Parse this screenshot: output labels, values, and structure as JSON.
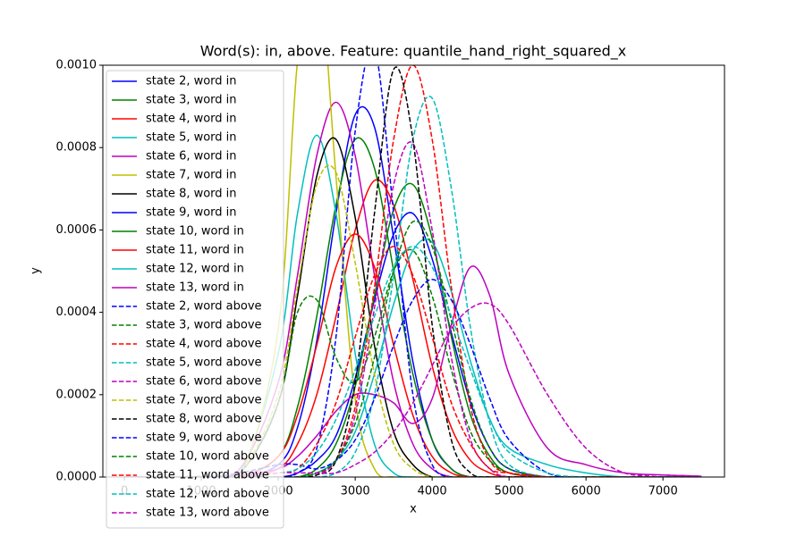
{
  "chart_data": {
    "type": "line",
    "title": "Word(s): in, above. Feature: quantile_hand_right_squared_x",
    "x_label": "x",
    "y_label": "y",
    "x": [
      0,
      500,
      1000,
      1500,
      2000,
      2250,
      2500,
      2750,
      3000,
      3250,
      3500,
      3750,
      4000,
      4250,
      4500,
      4750,
      5000,
      5500,
      6000,
      6500,
      7000,
      7500
    ],
    "xlim": [
      -280,
      7800
    ],
    "xticks": [
      0,
      1000,
      2000,
      3000,
      4000,
      5000,
      6000,
      7000
    ],
    "ylim": [
      0,
      0.001
    ],
    "yticks": [
      {
        "value": 0,
        "label": "0.0000"
      },
      {
        "value": 0.0002,
        "label": "0.0002"
      },
      {
        "value": 0.0004,
        "label": "0.0004"
      },
      {
        "value": 0.0006,
        "label": "0.0006"
      },
      {
        "value": 0.0008,
        "label": "0.0008"
      },
      {
        "value": 0.001,
        "label": "0.0010"
      }
    ],
    "legend": "upper left",
    "series": [
      {
        "name": "state 2, word in",
        "color": "#0000ff",
        "linestyle": "solid",
        "values": [
          0,
          0,
          0,
          0,
          3e-05,
          0.00012,
          0.00033,
          0.00064,
          0.00088,
          0.00085,
          0.00058,
          0.00028,
          9e-05,
          2e-05,
          0,
          0,
          0,
          0,
          0,
          0,
          0,
          0
        ]
      },
      {
        "name": "state 3, word in",
        "color": "#008000",
        "linestyle": "solid",
        "values": [
          0,
          0,
          0,
          0,
          5e-05,
          0.00017,
          0.00039,
          0.00066,
          0.00082,
          0.00075,
          0.0005,
          0.00025,
          9e-05,
          2e-05,
          0,
          0,
          0,
          0,
          0,
          0,
          0,
          0
        ]
      },
      {
        "name": "state 4, word in",
        "color": "#ff0000",
        "linestyle": "solid",
        "values": [
          0,
          0,
          0,
          0,
          2e-05,
          8e-05,
          0.0002,
          0.00039,
          0.0006,
          0.00072,
          0.00066,
          0.00048,
          0.00027,
          0.00012,
          4e-05,
          1e-05,
          0,
          0,
          0,
          0,
          0,
          0
        ]
      },
      {
        "name": "state 5, word in",
        "color": "#00bfbf",
        "linestyle": "solid",
        "values": [
          0,
          0,
          0,
          1e-05,
          0.0003,
          0.00064,
          0.00083,
          0.00064,
          0.0003,
          8e-05,
          1e-05,
          0,
          0,
          0,
          0,
          0,
          0,
          0,
          0,
          0,
          0,
          0
        ]
      },
      {
        "name": "state 6, word in",
        "color": "#bf00bf",
        "linestyle": "solid",
        "values": [
          0,
          0,
          0,
          2e-05,
          0.00023,
          0.00049,
          0.00078,
          0.00091,
          0.00078,
          0.00049,
          0.00023,
          8e-05,
          2e-05,
          0,
          0,
          0,
          0,
          0,
          0,
          0,
          0,
          0
        ]
      },
      {
        "name": "state 7, word in",
        "color": "#bfbf00",
        "linestyle": "solid",
        "values": [
          0,
          0,
          0,
          0,
          0.00036,
          0.00101,
          0.00128,
          0.00073,
          0.00019,
          2e-05,
          0,
          0,
          0,
          0,
          0,
          0,
          0,
          0,
          0,
          0,
          0,
          0
        ]
      },
      {
        "name": "state 8, word in",
        "color": "#000000",
        "linestyle": "solid",
        "values": [
          0,
          0,
          0,
          1e-05,
          0.00018,
          0.00044,
          0.00073,
          0.00082,
          0.00063,
          0.00032,
          0.00011,
          3e-05,
          0,
          0,
          0,
          0,
          0,
          0,
          0,
          0,
          0,
          0
        ]
      },
      {
        "name": "state 9, word in",
        "color": "#0000ff",
        "linestyle": "solid",
        "values": [
          0,
          0,
          0,
          0,
          0,
          1e-05,
          4e-05,
          0.0001,
          0.00024,
          0.00043,
          0.00059,
          0.00064,
          0.00053,
          0.00035,
          0.00018,
          7e-05,
          2e-05,
          0,
          0,
          0,
          0,
          0
        ]
      },
      {
        "name": "state 10, word in",
        "color": "#008000",
        "linestyle": "solid",
        "values": [
          0,
          0,
          0,
          0,
          0,
          0,
          2e-05,
          8e-05,
          0.00022,
          0.00044,
          0.00065,
          0.00071,
          0.00058,
          0.00034,
          0.00015,
          5e-05,
          1e-05,
          0,
          0,
          0,
          0,
          0
        ]
      },
      {
        "name": "state 11, word in",
        "color": "#ff0000",
        "linestyle": "solid",
        "values": [
          0,
          0,
          0,
          0,
          5e-05,
          0.00015,
          0.00032,
          0.00051,
          0.00059,
          0.00051,
          0.00032,
          0.00015,
          5e-05,
          1e-05,
          0,
          0,
          0,
          0,
          0,
          0,
          0,
          0
        ]
      },
      {
        "name": "state 12, word in",
        "color": "#00bfbf",
        "linestyle": "solid",
        "values": [
          0,
          0,
          0,
          0,
          0,
          0,
          1e-05,
          4e-05,
          0.00011,
          0.00025,
          0.00042,
          0.00055,
          0.00057,
          0.00045,
          0.00028,
          0.00014,
          7e-05,
          3e-05,
          1e-05,
          0,
          0,
          0
        ]
      },
      {
        "name": "state 13, word in",
        "color": "#bf00bf",
        "linestyle": "solid",
        "values": [
          0,
          0,
          0,
          5e-06,
          2e-05,
          5e-05,
          0.0001,
          0.00016,
          0.0002,
          0.0002,
          0.00018,
          0.00013,
          0.00019,
          0.00037,
          0.00051,
          0.00044,
          0.00025,
          7e-05,
          3e-05,
          1e-05,
          5e-06,
          2e-06
        ]
      },
      {
        "name": "state 2, word above",
        "color": "#0000ff",
        "linestyle": "dashed",
        "values": [
          0,
          0,
          0,
          0,
          0,
          1e-05,
          7e-05,
          0.00034,
          0.00084,
          0.00104,
          0.00064,
          0.0002,
          3e-05,
          0,
          0,
          0,
          0,
          0,
          0,
          0,
          0,
          0
        ]
      },
      {
        "name": "state 3, word above",
        "color": "#008000",
        "linestyle": "dashed",
        "values": [
          0,
          0,
          2e-06,
          1e-05,
          0.00018,
          0.0004,
          0.00043,
          0.00029,
          0.00023,
          0.00034,
          0.0005,
          0.00055,
          0.00044,
          0.00026,
          0.00011,
          4e-05,
          1e-05,
          0,
          0,
          0,
          0,
          0
        ]
      },
      {
        "name": "state 4, word above",
        "color": "#ff0000",
        "linestyle": "dashed",
        "values": [
          0,
          0,
          0,
          0,
          0,
          0,
          1e-05,
          4e-05,
          0.00017,
          0.00046,
          0.00082,
          0.001,
          0.00082,
          0.00046,
          0.00017,
          4e-05,
          1e-05,
          0,
          0,
          0,
          0,
          0
        ]
      },
      {
        "name": "state 5, word above",
        "color": "#00bfbf",
        "linestyle": "dashed",
        "values": [
          0,
          0,
          0,
          0,
          0,
          0,
          0,
          1e-05,
          6e-05,
          0.0002,
          0.00049,
          0.00082,
          0.00092,
          0.0007,
          0.00036,
          0.00013,
          3e-05,
          0,
          0,
          0,
          0,
          0
        ]
      },
      {
        "name": "state 6, word above",
        "color": "#bf00bf",
        "linestyle": "dashed",
        "values": [
          0,
          0,
          0,
          0,
          0,
          0,
          5e-06,
          4e-05,
          0.00015,
          0.00041,
          0.00071,
          0.00081,
          0.0006,
          0.00029,
          9e-05,
          2e-05,
          0,
          0,
          0,
          0,
          0,
          0
        ]
      },
      {
        "name": "state 7, word above",
        "color": "#bfbf00",
        "linestyle": "dashed",
        "values": [
          0,
          0,
          0,
          1e-05,
          0.0002,
          0.00046,
          0.00071,
          0.00074,
          0.00052,
          0.00025,
          8e-05,
          2e-05,
          0,
          0,
          0,
          0,
          0,
          0,
          0,
          0,
          0,
          0
        ]
      },
      {
        "name": "state 8, word above",
        "color": "#000000",
        "linestyle": "dashed",
        "values": [
          0,
          0,
          0,
          0,
          0,
          0,
          5e-06,
          4e-05,
          0.00023,
          0.00064,
          0.00099,
          0.00082,
          0.00037,
          9e-05,
          1e-05,
          0,
          0,
          0,
          0,
          0,
          0,
          0
        ]
      },
      {
        "name": "state 9, word above",
        "color": "#0000ff",
        "linestyle": "dashed",
        "values": [
          0,
          0,
          0,
          1e-05,
          3e-05,
          3e-05,
          2e-05,
          4e-05,
          9e-05,
          0.00019,
          0.00032,
          0.00043,
          0.00048,
          0.00043,
          0.00032,
          0.00019,
          9e-05,
          1e-05,
          0,
          0,
          0,
          0
        ]
      },
      {
        "name": "state 10, word above",
        "color": "#008000",
        "linestyle": "dashed",
        "values": [
          0,
          0,
          0,
          0,
          0,
          0,
          1e-05,
          4e-05,
          0.00013,
          0.00029,
          0.0005,
          0.00062,
          0.00056,
          0.00038,
          0.00019,
          7e-05,
          2e-05,
          0,
          0,
          0,
          0,
          0
        ]
      },
      {
        "name": "state 11, word above",
        "color": "#ff0000",
        "linestyle": "dashed",
        "values": [
          0,
          0,
          0,
          0,
          1e-05,
          2e-05,
          8e-05,
          0.00018,
          0.00034,
          0.00049,
          0.00056,
          0.00049,
          0.00034,
          0.00018,
          8e-05,
          2e-05,
          1e-05,
          0,
          0,
          0,
          0,
          0
        ]
      },
      {
        "name": "state 12, word above",
        "color": "#00bfbf",
        "linestyle": "dashed",
        "values": [
          0,
          0,
          0,
          0,
          1e-05,
          2e-05,
          6e-05,
          0.00014,
          0.00026,
          0.00039,
          0.00051,
          0.00056,
          0.00051,
          0.00039,
          0.00026,
          0.00014,
          6e-05,
          1e-05,
          0,
          0,
          0,
          0
        ]
      },
      {
        "name": "state 13, word above",
        "color": "#bf00bf",
        "linestyle": "dashed",
        "values": [
          0,
          0,
          0,
          0,
          1e-05,
          1e-05,
          1e-05,
          1e-05,
          3e-05,
          6e-05,
          0.00011,
          0.00018,
          0.00027,
          0.00036,
          0.00041,
          0.00042,
          0.00037,
          0.0002,
          7e-05,
          1e-05,
          5e-06,
          2e-06
        ]
      }
    ]
  }
}
